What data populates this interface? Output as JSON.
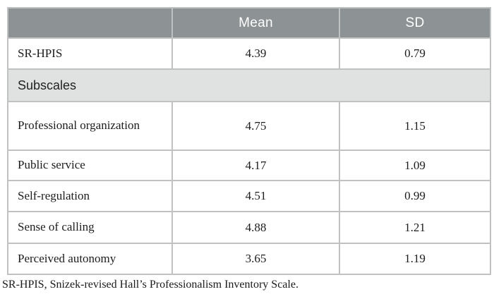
{
  "table": {
    "header": {
      "label": "",
      "mean": "Mean",
      "sd": "SD"
    },
    "section_label": "Subscales",
    "rows": [
      {
        "label": "SR-HPIS",
        "mean": "4.39",
        "sd": "0.79"
      },
      {
        "label": "Professional organization",
        "mean": "4.75",
        "sd": "1.15"
      },
      {
        "label": "Public service",
        "mean": "4.17",
        "sd": "1.09"
      },
      {
        "label": "Self-regulation",
        "mean": "4.51",
        "sd": "0.99"
      },
      {
        "label": "Sense of calling",
        "mean": "4.88",
        "sd": "1.21"
      },
      {
        "label": "Perceived autonomy",
        "mean": "3.65",
        "sd": "1.19"
      }
    ]
  },
  "footnote": "SR-HPIS, Snizek-revised Hall’s Professionalism Inventory Scale.",
  "colors": {
    "header_bg": "#8d9294",
    "header_text": "#ffffff",
    "section_bg": "#e0e1e1",
    "border_outer": "#9b9ea0",
    "border_inner": "#c0c2c2",
    "body_text": "#1c1c1c"
  }
}
